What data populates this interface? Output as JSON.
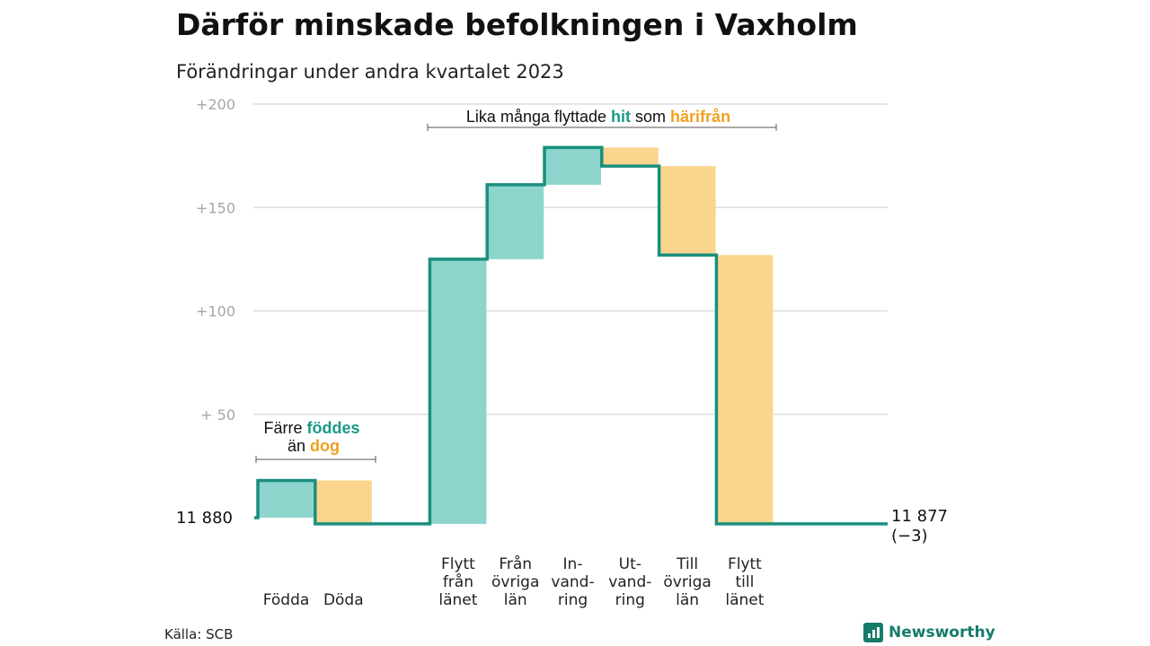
{
  "title": "Därför minskade befolkningen i Vaxholm",
  "subtitle": "Förändringar under andra kvartalet 2023",
  "source": "Källa: SCB",
  "brand": "Newsworthy",
  "colors": {
    "increase": "#8dd5cc",
    "decrease": "#fad58e",
    "line": "#1a8f7f",
    "grid": "#dddddd",
    "accent_hit": "#1a998a",
    "accent_out": "#f0a020"
  },
  "chart_data": {
    "type": "waterfall",
    "base_label": "11  880",
    "base_value": 11880,
    "end_label": "11 877",
    "end_change_label": "(−3)",
    "end_value": 11877,
    "y_ticks": [
      {
        "value": 200,
        "label": "+200"
      },
      {
        "value": 150,
        "label": "+150"
      },
      {
        "value": 100,
        "label": "+100"
      },
      {
        "value": 50,
        "label": "+  50"
      }
    ],
    "ylim": [
      0,
      200
    ],
    "steps": [
      {
        "label": [
          "Födda"
        ],
        "start": 0,
        "end": 18,
        "kind": "increase"
      },
      {
        "label": [
          "Döda"
        ],
        "start": 18,
        "end": -3,
        "kind": "decrease"
      },
      {
        "label": [
          "Flytt",
          "från",
          "länet"
        ],
        "start": -3,
        "end": 125,
        "kind": "increase"
      },
      {
        "label": [
          "Från",
          "övriga",
          "län"
        ],
        "start": 125,
        "end": 161,
        "kind": "increase"
      },
      {
        "label": [
          "In-",
          "vand-",
          "ring"
        ],
        "start": 161,
        "end": 179,
        "kind": "increase"
      },
      {
        "label": [
          "Ut-",
          "vand-",
          "ring"
        ],
        "start": 179,
        "end": 170,
        "kind": "decrease"
      },
      {
        "label": [
          "Till",
          "övriga",
          "län"
        ],
        "start": 170,
        "end": 127,
        "kind": "decrease"
      },
      {
        "label": [
          "Flytt",
          "till",
          "länet"
        ],
        "start": 127,
        "end": -3,
        "kind": "decrease"
      }
    ],
    "annotations": {
      "natural": {
        "line1": "Färre ",
        "line1_hl": "föddes",
        "line2": "än ",
        "line2_hl": "dog"
      },
      "migration": {
        "text": "Lika många flyttade ",
        "hl1": "hit",
        "mid": " som ",
        "hl2": "härifrån"
      }
    }
  }
}
